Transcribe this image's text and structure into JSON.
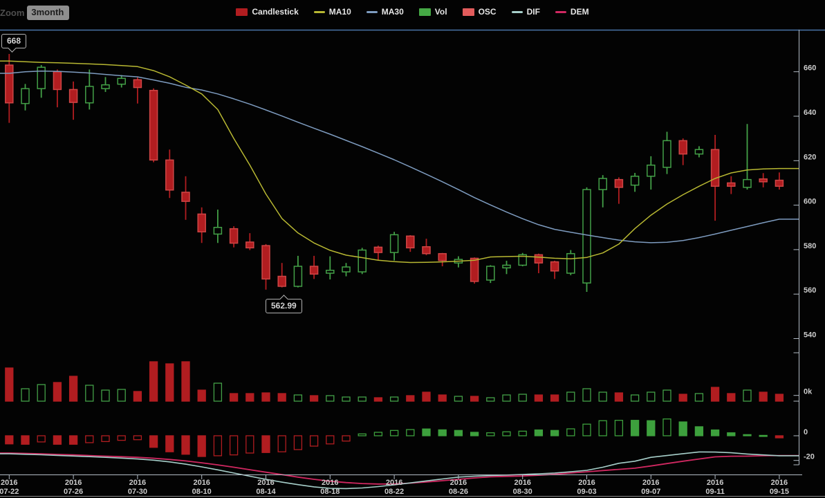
{
  "ui": {
    "zoom_label": "Zoom",
    "range_button": "3month",
    "tooltips": {
      "high": "668",
      "low": "562.99"
    }
  },
  "legend": {
    "items": [
      {
        "label": "Candlestick",
        "swatch": "rect",
        "color": "#b11d20"
      },
      {
        "label": "MA10",
        "swatch": "line",
        "color": "#b8b832"
      },
      {
        "label": "MA30",
        "swatch": "line",
        "color": "#7e9cc0"
      },
      {
        "label": "Vol",
        "swatch": "rect",
        "color": "#45a945"
      },
      {
        "label": "OSC",
        "swatch": "rect",
        "color": "#e25c5c"
      },
      {
        "label": "DIF",
        "swatch": "line",
        "color": "#a7cfca"
      },
      {
        "label": "DEM",
        "swatch": "line",
        "color": "#d12861"
      }
    ]
  },
  "chart_data": {
    "type": "candlestick",
    "panels": [
      "price",
      "volume",
      "macd"
    ],
    "x_axis": {
      "year": "2016",
      "tick_labels": [
        "07-22",
        "07-26",
        "07-30",
        "08-10",
        "08-14",
        "08-18",
        "08-22",
        "08-26",
        "08-30",
        "09-03",
        "09-07",
        "09-11",
        "09-15"
      ],
      "tick_every": 4
    },
    "y_axis": {
      "price_ticks": [
        660,
        640,
        620,
        600,
        580,
        560,
        540
      ],
      "volume_ticks": [
        "0k"
      ],
      "macd_ticks": [
        "0",
        "-20"
      ]
    },
    "annotations": [
      {
        "text": "668",
        "meaning": "high of first candle"
      },
      {
        "text": "562.99",
        "meaning": "low of 08-13 candle"
      }
    ],
    "candles_ohlc": [
      [
        663,
        668,
        637,
        646
      ],
      [
        645.7,
        654.5,
        642.6,
        652.4
      ],
      [
        652.4,
        663,
        648.3,
        662
      ],
      [
        660,
        661,
        644,
        652
      ],
      [
        652,
        655.6,
        638.4,
        646.2
      ],
      [
        646,
        661,
        643,
        653.4
      ],
      [
        652.4,
        657.6,
        650.9,
        654.1
      ],
      [
        654.4,
        658.5,
        652.9,
        657
      ],
      [
        656.4,
        657.5,
        645.7,
        652.9
      ],
      [
        651.6,
        652.5,
        619.3,
        620.3
      ],
      [
        620.3,
        625,
        603.2,
        606.8
      ],
      [
        605.8,
        613,
        593.4,
        601.7
      ],
      [
        596,
        599,
        583,
        588
      ],
      [
        587,
        598,
        583,
        590
      ],
      [
        589.4,
        590.5,
        581,
        582.9
      ],
      [
        583.4,
        587.4,
        579.8,
        580.8
      ],
      [
        581.8,
        582.5,
        562,
        566.8
      ],
      [
        568,
        574,
        562.99,
        563.5
      ],
      [
        563.5,
        577.2,
        563,
        572.5
      ],
      [
        572.5,
        577.2,
        566.8,
        569
      ],
      [
        569.4,
        577,
        566.6,
        570.7
      ],
      [
        570,
        574,
        568,
        572.2
      ],
      [
        570,
        580.8,
        569,
        579.8
      ],
      [
        581.1,
        581.8,
        575.1,
        578.7
      ],
      [
        578.7,
        588,
        575.1,
        586.7
      ],
      [
        586.1,
        586.5,
        579,
        580.8
      ],
      [
        581.3,
        584.9,
        577.5,
        578.2
      ],
      [
        578.2,
        578.5,
        572.5,
        575.1
      ],
      [
        574,
        577,
        572,
        575.6
      ],
      [
        576.1,
        576.5,
        564.7,
        565.7
      ],
      [
        566.3,
        573,
        565,
        572.5
      ],
      [
        571.8,
        575,
        569,
        573
      ],
      [
        573,
        578.5,
        572.5,
        577.7
      ],
      [
        577.7,
        578.2,
        569.4,
        574
      ],
      [
        574.5,
        575,
        566.8,
        570.4
      ],
      [
        569.4,
        579.8,
        568.5,
        578.2
      ],
      [
        565,
        608,
        561,
        607
      ],
      [
        607,
        613.5,
        599,
        612
      ],
      [
        611.5,
        612.5,
        600.6,
        608
      ],
      [
        609,
        614.5,
        606,
        613
      ],
      [
        613,
        622,
        607,
        618
      ],
      [
        617,
        633,
        614,
        629
      ],
      [
        629,
        630,
        618,
        623
      ],
      [
        623,
        626.5,
        621.5,
        625
      ],
      [
        625,
        631.6,
        593,
        608.5
      ],
      [
        610,
        613,
        605,
        608.5
      ],
      [
        608,
        636.5,
        607,
        611.5
      ],
      [
        611.8,
        614.4,
        608,
        610.5
      ],
      [
        611.2,
        614.7,
        607,
        608.5
      ]
    ],
    "ma10": [
      664.8,
      664.5,
      664.2,
      664,
      663.8,
      663.5,
      663.2,
      662.8,
      662.3,
      660.5,
      657.7,
      654,
      650,
      643,
      630,
      618,
      605,
      594,
      587.5,
      583,
      579.7,
      577.5,
      576.4,
      575.2,
      574.6,
      574.2,
      574.3,
      574.5,
      574.8,
      575.2,
      576.7,
      576.9,
      577,
      576.6,
      576.1,
      575.9,
      576.5,
      578.5,
      582.5,
      589.5,
      595.5,
      600.5,
      604.7,
      608.5,
      612,
      614.5,
      615.8,
      616.3,
      616.5
    ],
    "ma30": [
      659.3,
      660,
      660.3,
      660.2,
      659.8,
      659.4,
      658.8,
      658.2,
      657.7,
      656.3,
      654.8,
      653,
      651.8,
      650,
      647.8,
      645.4,
      642.8,
      640.1,
      637.3,
      634.6,
      631.9,
      629.1,
      626.3,
      623.4,
      620.4,
      617.2,
      613.9,
      610.5,
      607,
      603.4,
      600.1,
      596.9,
      593.9,
      591.2,
      589.1,
      587.8,
      586.6,
      585.4,
      584.3,
      583.5,
      583.1,
      583.3,
      584.1,
      585.4,
      587,
      588.7,
      590.4,
      592.1,
      593.7
    ],
    "volume_k": [
      48,
      18,
      24,
      27,
      36,
      23,
      16,
      17,
      14,
      57,
      54,
      57,
      16,
      26,
      11,
      11,
      12,
      11,
      9,
      8,
      8,
      6,
      6,
      5,
      6,
      8,
      13,
      9,
      7,
      7,
      5,
      9,
      10,
      9,
      9,
      13,
      18,
      13,
      12,
      9,
      13,
      16,
      10,
      11,
      20,
      11,
      16,
      13,
      10
    ],
    "osc": [
      -6.6,
      -6.9,
      -5,
      -6.9,
      -6.9,
      -5.6,
      -4.7,
      -3.7,
      -3.2,
      -9.4,
      -13,
      -15,
      -16.8,
      -16.2,
      -15.5,
      -14,
      -13.6,
      -13,
      -11.2,
      -8.4,
      -6.6,
      -4.3,
      1.5,
      2.8,
      4.3,
      5,
      5.5,
      4.8,
      4.3,
      2.8,
      2.4,
      3.2,
      3.7,
      4.7,
      4.3,
      5.6,
      9.4,
      12.2,
      12.5,
      12.5,
      12.2,
      13.6,
      11.2,
      7.3,
      4.7,
      2.4,
      0.9,
      0.3,
      -1.7
    ],
    "osc_hollow": [
      false,
      false,
      true,
      false,
      false,
      true,
      true,
      true,
      true,
      false,
      false,
      false,
      false,
      true,
      true,
      true,
      false,
      true,
      true,
      true,
      true,
      true,
      true,
      true,
      true,
      true,
      false,
      false,
      false,
      false,
      true,
      true,
      true,
      false,
      false,
      true,
      true,
      true,
      true,
      false,
      false,
      true,
      false,
      false,
      false,
      false,
      false,
      false,
      false
    ],
    "dif": [
      -14.6,
      -15,
      -15.4,
      -15.9,
      -16.4,
      -16.9,
      -17.5,
      -18.1,
      -18.8,
      -19.8,
      -21.2,
      -23,
      -25.2,
      -27.6,
      -30.2,
      -32.8,
      -35.3,
      -37.6,
      -39.6,
      -41.4,
      -42.6,
      -42.8,
      -42.3,
      -41.2,
      -39.8,
      -38.2,
      -36.6,
      -35,
      -33.5,
      -32.8,
      -32.2,
      -31.8,
      -31.4,
      -30.8,
      -30.2,
      -29.2,
      -28,
      -25.5,
      -22.3,
      -20.6,
      -17.5,
      -16,
      -14.5,
      -13.1,
      -13.2,
      -13.8,
      -14.8,
      -15.5,
      -16.2
    ],
    "dem": [
      -14,
      -14.3,
      -14.7,
      -15.1,
      -15.5,
      -16,
      -16.5,
      -17,
      -17.5,
      -18.2,
      -19.2,
      -20.4,
      -21.9,
      -23.6,
      -25.5,
      -27.5,
      -29.5,
      -31.5,
      -33.5,
      -35.3,
      -36.8,
      -37.9,
      -38.7,
      -39.1,
      -39,
      -38.4,
      -37.5,
      -36.4,
      -35.3,
      -34.2,
      -33.3,
      -32.9,
      -32.6,
      -32,
      -31.2,
      -30.2,
      -29.2,
      -28.2,
      -27.2,
      -26.3,
      -24.5,
      -22.5,
      -20.6,
      -18.8,
      -17.1,
      -16.6,
      -16.5,
      -16.2,
      -16
    ],
    "colors": {
      "background": "#030303",
      "candle_down_fill": "#b11d20",
      "candle_down_border": "#cf4646",
      "candle_up_border": "#43a047",
      "ma10": "#b8b832",
      "ma30": "#7e9cc0",
      "osc_up": "#3da03d",
      "osc_down": "#b11d20",
      "dif": "#a7cfca",
      "dem": "#d12861",
      "axis_line": "#b3bcc6",
      "axis_text": "#cccccc",
      "top_border": "#4a74a8",
      "bottom_border": "#8c8c8c"
    }
  }
}
